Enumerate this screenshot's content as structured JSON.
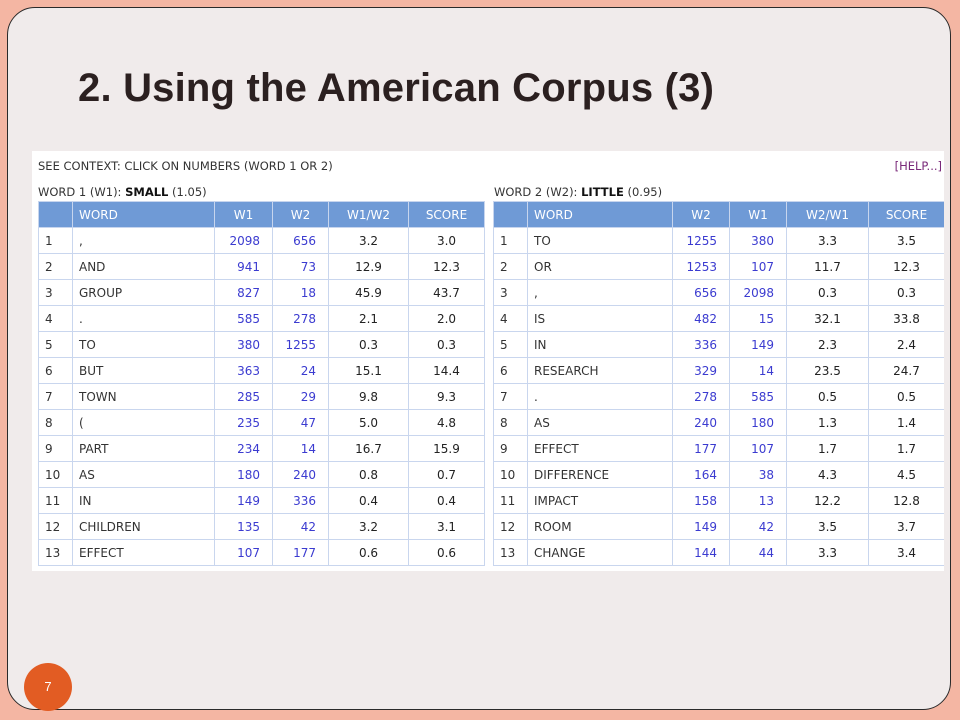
{
  "title": "2. Using the American Corpus (3)",
  "page_number": "7",
  "context_text": "SEE CONTEXT: CLICK ON NUMBERS (WORD 1 OR 2)",
  "help_link": "[HELP...]",
  "left": {
    "label": "WORD 1 (W1): ",
    "word": "SMALL",
    "score": " (1.05)",
    "headers": [
      "",
      "WORD",
      "W1",
      "W2",
      "W1/W2",
      "SCORE"
    ],
    "rows": [
      [
        "1",
        ",",
        "2098",
        "656",
        "3.2",
        "3.0"
      ],
      [
        "2",
        "AND",
        "941",
        "73",
        "12.9",
        "12.3"
      ],
      [
        "3",
        "GROUP",
        "827",
        "18",
        "45.9",
        "43.7"
      ],
      [
        "4",
        ".",
        "585",
        "278",
        "2.1",
        "2.0"
      ],
      [
        "5",
        "TO",
        "380",
        "1255",
        "0.3",
        "0.3"
      ],
      [
        "6",
        "BUT",
        "363",
        "24",
        "15.1",
        "14.4"
      ],
      [
        "7",
        "TOWN",
        "285",
        "29",
        "9.8",
        "9.3"
      ],
      [
        "8",
        "(",
        "235",
        "47",
        "5.0",
        "4.8"
      ],
      [
        "9",
        "PART",
        "234",
        "14",
        "16.7",
        "15.9"
      ],
      [
        "10",
        "AS",
        "180",
        "240",
        "0.8",
        "0.7"
      ],
      [
        "11",
        "IN",
        "149",
        "336",
        "0.4",
        "0.4"
      ],
      [
        "12",
        "CHILDREN",
        "135",
        "42",
        "3.2",
        "3.1"
      ],
      [
        "13",
        "EFFECT",
        "107",
        "177",
        "0.6",
        "0.6"
      ]
    ]
  },
  "right": {
    "label": "WORD 2 (W2): ",
    "word": "LITTLE",
    "score": " (0.95)",
    "headers": [
      "",
      "WORD",
      "W2",
      "W1",
      "W2/W1",
      "SCORE"
    ],
    "rows": [
      [
        "1",
        "TO",
        "1255",
        "380",
        "3.3",
        "3.5"
      ],
      [
        "2",
        "OR",
        "1253",
        "107",
        "11.7",
        "12.3"
      ],
      [
        "3",
        ",",
        "656",
        "2098",
        "0.3",
        "0.3"
      ],
      [
        "4",
        "IS",
        "482",
        "15",
        "32.1",
        "33.8"
      ],
      [
        "5",
        "IN",
        "336",
        "149",
        "2.3",
        "2.4"
      ],
      [
        "6",
        "RESEARCH",
        "329",
        "14",
        "23.5",
        "24.7"
      ],
      [
        "7",
        ".",
        "278",
        "585",
        "0.5",
        "0.5"
      ],
      [
        "8",
        "AS",
        "240",
        "180",
        "1.3",
        "1.4"
      ],
      [
        "9",
        "EFFECT",
        "177",
        "107",
        "1.7",
        "1.7"
      ],
      [
        "10",
        "DIFFERENCE",
        "164",
        "38",
        "4.3",
        "4.5"
      ],
      [
        "11",
        "IMPACT",
        "158",
        "13",
        "12.2",
        "12.8"
      ],
      [
        "12",
        "ROOM",
        "149",
        "42",
        "3.5",
        "3.7"
      ],
      [
        "13",
        "CHANGE",
        "144",
        "44",
        "3.3",
        "3.4"
      ]
    ]
  }
}
